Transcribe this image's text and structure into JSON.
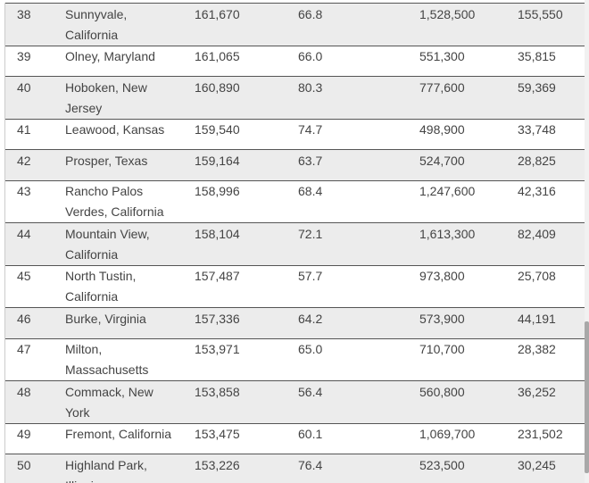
{
  "table": {
    "rows": [
      [
        "38",
        "Sunnyvale, California",
        "161,670",
        "66.8",
        "1,528,500",
        "155,550"
      ],
      [
        "39",
        "Olney, Maryland",
        "161,065",
        "66.0",
        "551,300",
        "35,815"
      ],
      [
        "40",
        "Hoboken, New Jersey",
        "160,890",
        "80.3",
        "777,600",
        "59,369"
      ],
      [
        "41",
        "Leawood, Kansas",
        "159,540",
        "74.7",
        "498,900",
        "33,748"
      ],
      [
        "42",
        "Prosper, Texas",
        "159,164",
        "63.7",
        "524,700",
        "28,825"
      ],
      [
        "43",
        "Rancho Palos Verdes, California",
        "158,996",
        "68.4",
        "1,247,600",
        "42,316"
      ],
      [
        "44",
        "Mountain View, California",
        "158,104",
        "72.1",
        "1,613,300",
        "82,409"
      ],
      [
        "45",
        "North Tustin, California",
        "157,487",
        "57.7",
        "973,800",
        "25,708"
      ],
      [
        "46",
        "Burke, Virginia",
        "157,336",
        "64.2",
        "573,900",
        "44,191"
      ],
      [
        "47",
        "Milton, Massachusetts",
        "153,971",
        "65.0",
        "710,700",
        "28,382"
      ],
      [
        "48",
        "Commack, New York",
        "153,858",
        "56.4",
        "560,800",
        "36,252"
      ],
      [
        "49",
        "Fremont, California",
        "153,475",
        "60.1",
        "1,069,700",
        "231,502"
      ],
      [
        "50",
        "Highland Park, Illinois",
        "153,226",
        "76.4",
        "523,500",
        "30,245"
      ]
    ]
  }
}
